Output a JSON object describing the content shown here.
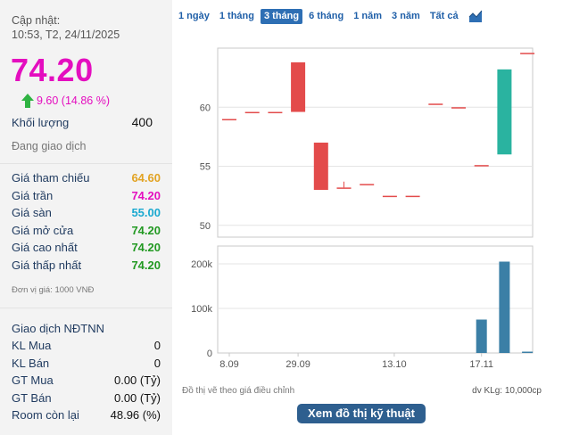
{
  "quote": {
    "update_label": "Cập nhật:",
    "update_time": "10:53, T2, 24/11/2025",
    "price": "74.20",
    "change": "9.60 (14.86 %)",
    "volume_label": "Khối lượng",
    "volume_value": "400",
    "status": "Đang giao dịch"
  },
  "prices": [
    {
      "label": "Giá tham chiếu",
      "value": "64.60",
      "color": "#e2a323"
    },
    {
      "label": "Giá trần",
      "value": "74.20",
      "color": "#e40ebf"
    },
    {
      "label": "Giá sàn",
      "value": "55.00",
      "color": "#1ba9d0"
    },
    {
      "label": "Giá mở cửa",
      "value": "74.20",
      "color": "#229922"
    },
    {
      "label": "Giá cao nhất",
      "value": "74.20",
      "color": "#229922"
    },
    {
      "label": "Giá thấp nhất",
      "value": "74.20",
      "color": "#229922"
    }
  ],
  "unit_note": "Đơn vị giá: 1000 VNĐ",
  "foreign": {
    "title": "Giao dịch NĐTNN",
    "rows": [
      {
        "label": "KL Mua",
        "value": "0"
      },
      {
        "label": "KL Bán",
        "value": "0"
      },
      {
        "label": "GT Mua",
        "value": "0.00 (Tỷ)"
      },
      {
        "label": "GT Bán",
        "value": "0.00 (Tỷ)"
      },
      {
        "label": "Room còn lại",
        "value": "48.96 (%)"
      }
    ]
  },
  "tabs": [
    "1 ngày",
    "1 tháng",
    "3 tháng",
    "6 tháng",
    "1 năm",
    "3 năm",
    "Tất cả"
  ],
  "active_tab": "3 tháng",
  "chart_icon": "area-chart-icon",
  "footer_left": "Đồ thị vẽ theo giá điều chỉnh",
  "footer_right": "dv KLg: 10,000cp",
  "tech_button": "Xem đồ thị kỹ thuật",
  "colors": {
    "up": "#2ab3a0",
    "down": "#e34b4b",
    "volume": "#3b7fa6",
    "accent": "#e40ebf",
    "button": "#2e5f8f"
  },
  "chart_data": [
    {
      "type": "candlestick",
      "x_tick_labels": [
        "8.09",
        "29.09",
        "13.10",
        "17.11"
      ],
      "y_tick_labels": [
        50,
        55,
        60
      ],
      "ylim": [
        49,
        65
      ],
      "candles": [
        {
          "open": 59.0,
          "close": 59.0
        },
        {
          "open": 59.6,
          "close": 59.6
        },
        {
          "open": 59.6,
          "close": 59.6
        },
        {
          "open": 63.8,
          "close": 59.6
        },
        {
          "open": 57.0,
          "close": 53.0
        },
        {
          "open": 53.2,
          "close": 53.2,
          "high": 53.7
        },
        {
          "open": 53.5,
          "close": 53.5
        },
        {
          "open": 52.5,
          "close": 52.5
        },
        {
          "open": 52.5,
          "close": 52.5
        },
        {
          "open": 60.3,
          "close": 60.3
        },
        {
          "open": 60.0,
          "close": 60.0
        },
        {
          "open": 55.1,
          "close": 55.1
        },
        {
          "open": 56.0,
          "close": 63.2
        },
        {
          "open": 64.6,
          "close": 64.6
        }
      ]
    },
    {
      "type": "bar",
      "y_tick_labels": [
        "0",
        "100k",
        "200k"
      ],
      "ylim": [
        0,
        240000
      ],
      "values": [
        0,
        0,
        0,
        0,
        0,
        0,
        0,
        0,
        0,
        0,
        0,
        75000,
        205000,
        3000
      ]
    }
  ]
}
